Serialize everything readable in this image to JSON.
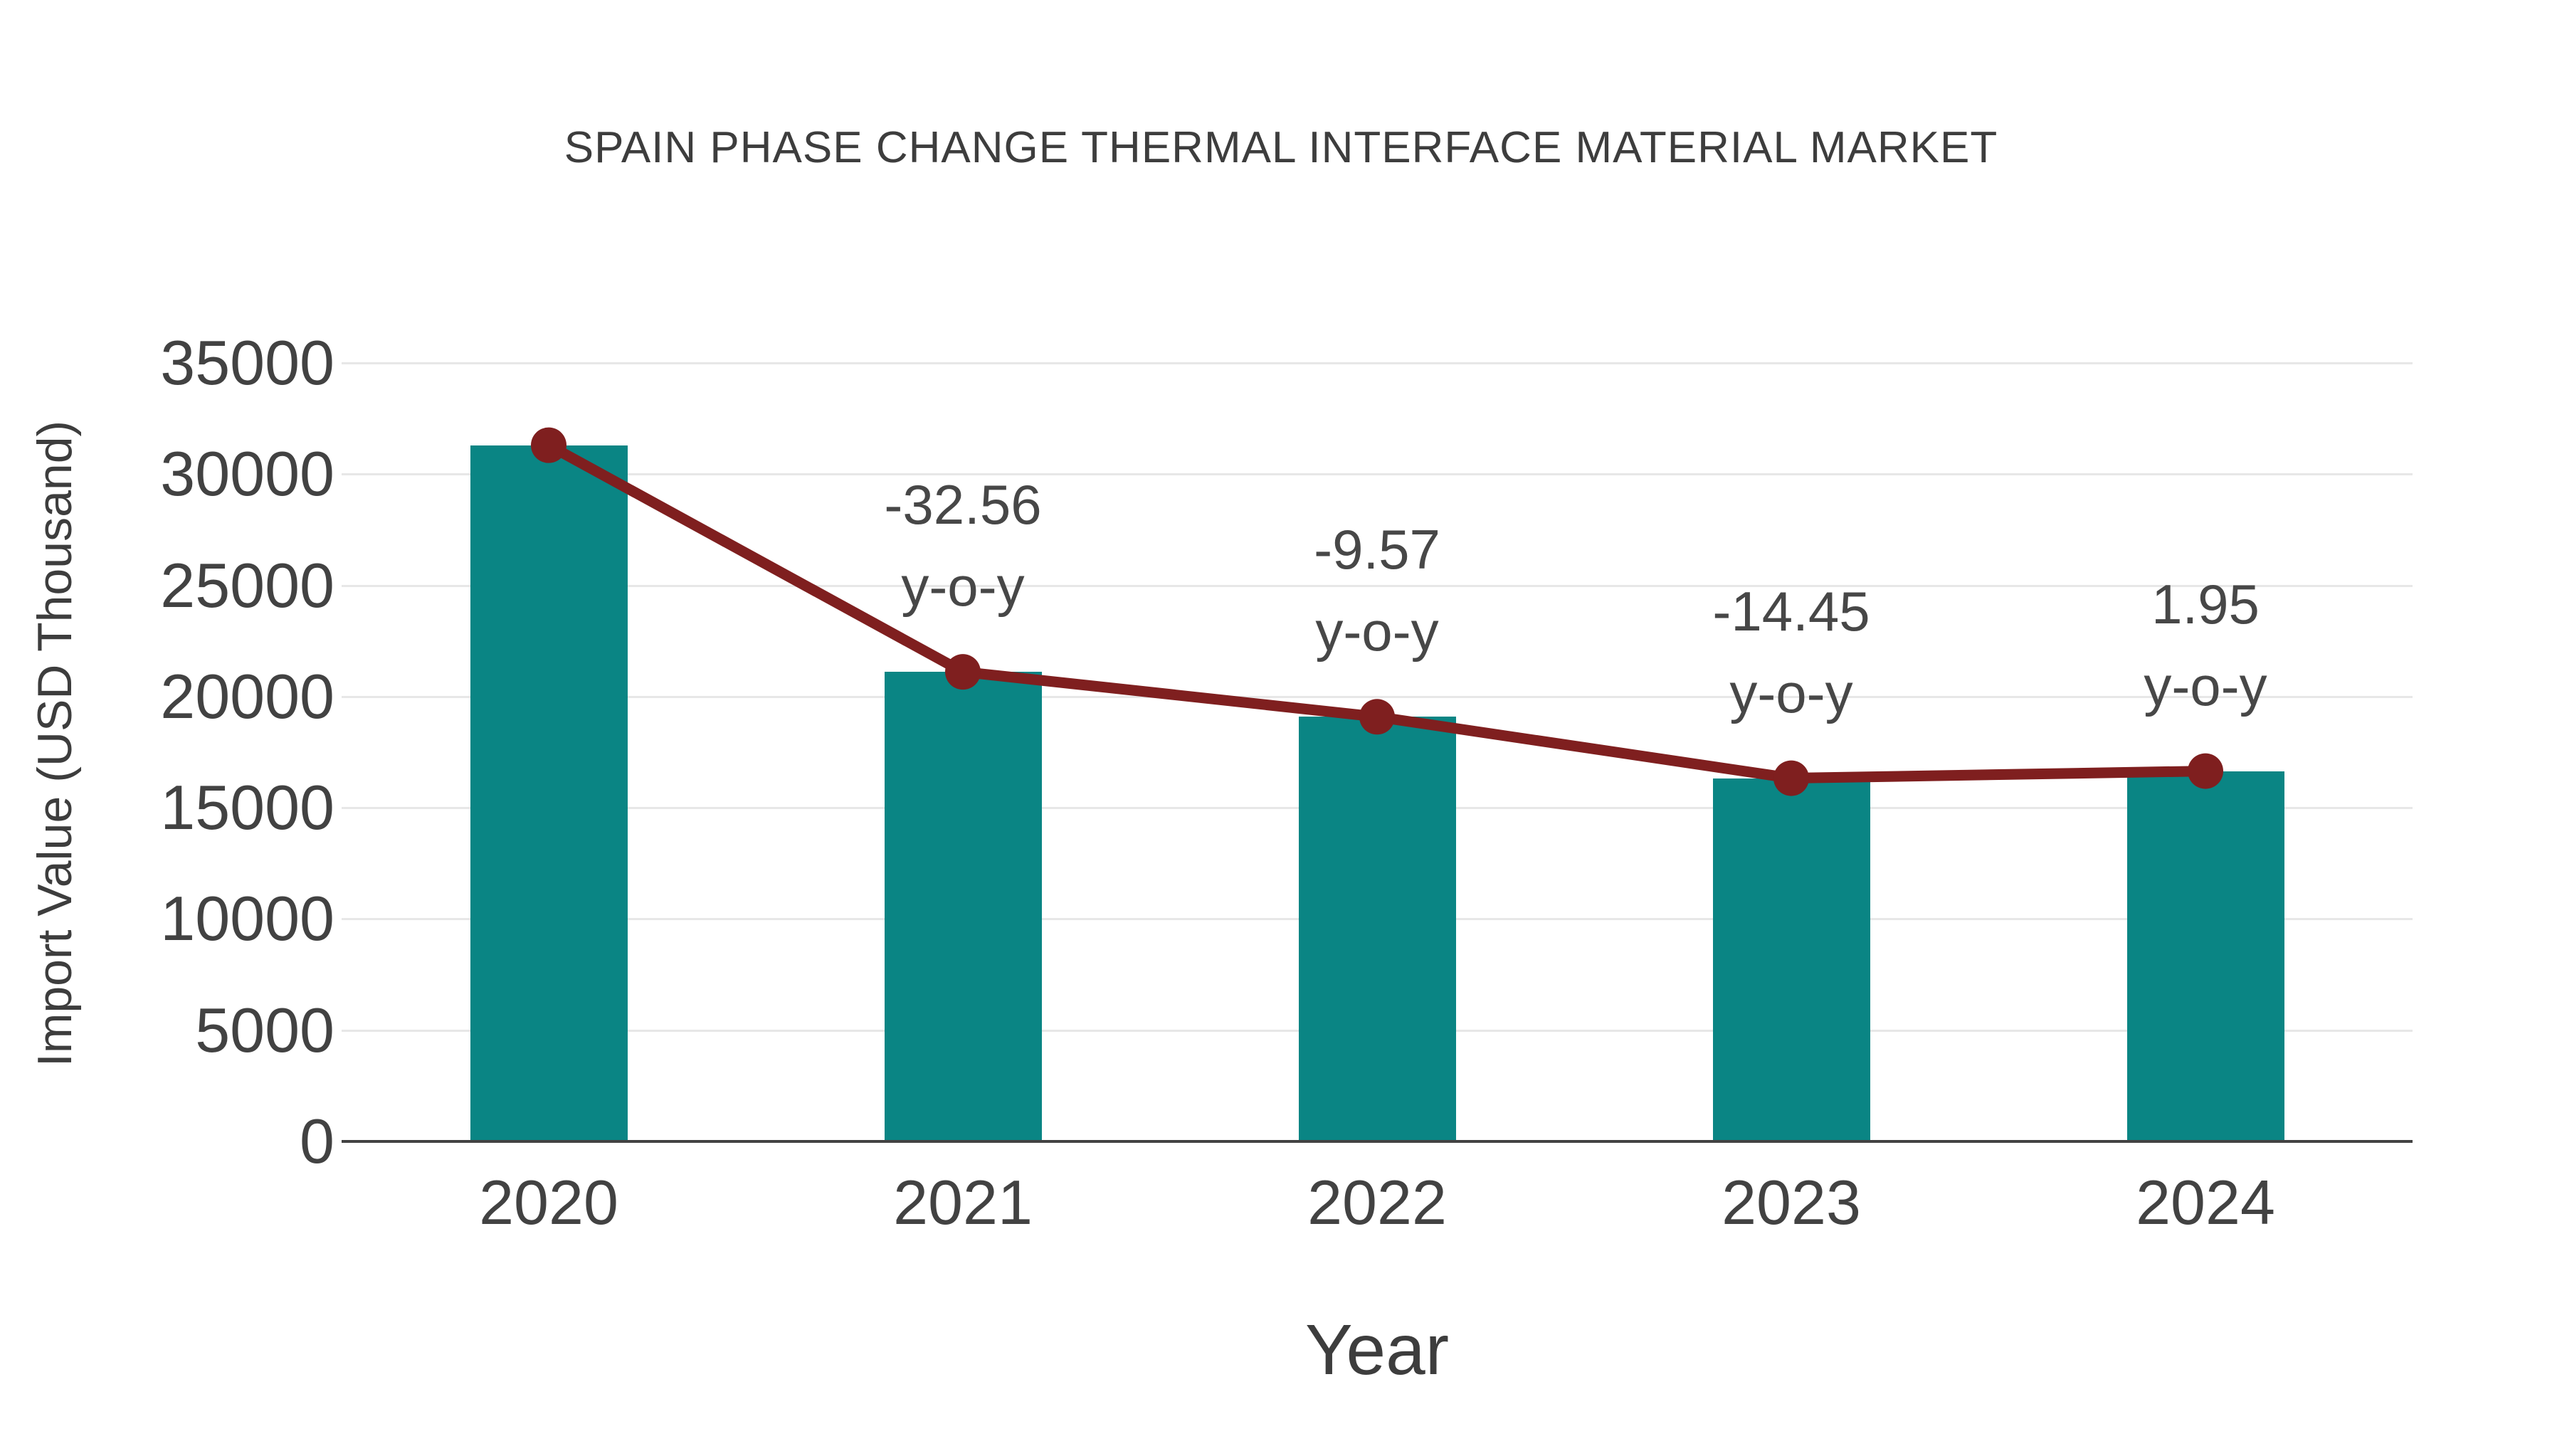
{
  "chart_data": {
    "type": "bar",
    "title": "SPAIN PHASE CHANGE THERMAL INTERFACE MATERIAL MARKET",
    "xlabel": "Year",
    "ylabel": "Import Value (USD Thousand)",
    "categories": [
      "2020",
      "2021",
      "2022",
      "2023",
      "2024"
    ],
    "series": [
      {
        "name": "Import Value (USD Thousand)",
        "type": "bar",
        "color": "#0a8584",
        "values": [
          31300,
          21110,
          19090,
          16330,
          16650
        ]
      },
      {
        "name": "Import Value trend line",
        "type": "line",
        "color": "#7f1f1f",
        "values": [
          31300,
          21110,
          19090,
          16330,
          16650
        ]
      }
    ],
    "annotations": [
      {
        "category": "2021",
        "value": "-32.56",
        "suffix": "y-o-y"
      },
      {
        "category": "2022",
        "value": "-9.57",
        "suffix": "y-o-y"
      },
      {
        "category": "2023",
        "value": "-14.45",
        "suffix": "y-o-y"
      },
      {
        "category": "2024",
        "value": "1.95",
        "suffix": "y-o-y"
      }
    ],
    "ylim": [
      0,
      35000
    ],
    "yticks": [
      0,
      5000,
      10000,
      15000,
      20000,
      25000,
      30000,
      35000
    ],
    "grid": true,
    "legend_position": "none"
  },
  "colors": {
    "bar": "#0a8584",
    "line": "#7f1f1f",
    "marker": "#7f1f1f",
    "text": "#404040",
    "grid": "#e7e7e7",
    "axis": "#424242",
    "background": "#ffffff"
  }
}
